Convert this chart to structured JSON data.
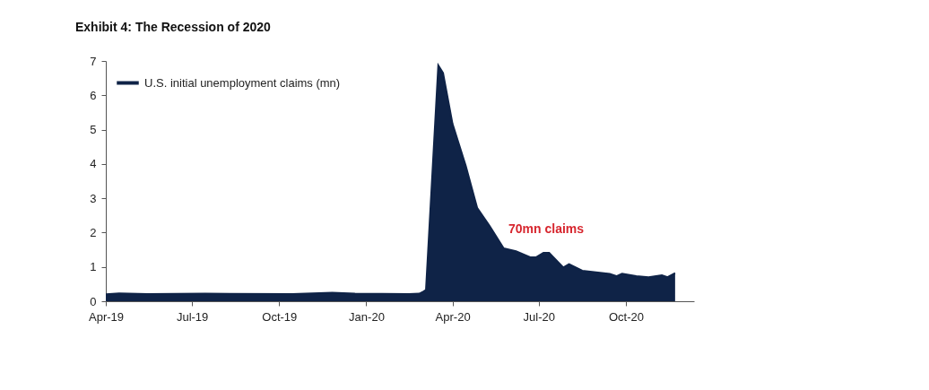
{
  "chart_data": {
    "type": "area",
    "title": "Exhibit 4: The Recession of 2020",
    "x": [
      "2019-04-01",
      "2019-04-15",
      "2019-05-15",
      "2019-07-15",
      "2019-10-15",
      "2019-11-26",
      "2019-12-20",
      "2020-02-15",
      "2020-02-26",
      "2020-03-01",
      "2020-03-04",
      "2020-03-17",
      "2020-03-22",
      "2020-04-01",
      "2020-04-15",
      "2020-04-27",
      "2020-05-10",
      "2020-05-25",
      "2020-06-07",
      "2020-06-22",
      "2020-06-28",
      "2020-07-06",
      "2020-07-12",
      "2020-07-27",
      "2020-08-02",
      "2020-08-16",
      "2020-09-14",
      "2020-09-21",
      "2020-09-27",
      "2020-10-12",
      "2020-10-25",
      "2020-11-08",
      "2020-11-14",
      "2020-11-22"
    ],
    "series": [
      {
        "name": "U.S. initial unemployment claims (mn)",
        "color": "#0f2347",
        "values": [
          0.2,
          0.23,
          0.21,
          0.22,
          0.21,
          0.25,
          0.22,
          0.21,
          0.22,
          0.28,
          0.33,
          6.87,
          6.65,
          5.17,
          3.94,
          2.72,
          2.2,
          1.54,
          1.46,
          1.28,
          1.28,
          1.41,
          1.41,
          0.98,
          1.08,
          0.89,
          0.8,
          0.73,
          0.8,
          0.73,
          0.7,
          0.76,
          0.7,
          0.82
        ]
      }
    ],
    "xlim": [
      "2019-04-01",
      "2020-12-12"
    ],
    "xticks": [
      {
        "value": "2019-04-01",
        "label": "Apr-19"
      },
      {
        "value": "2019-07-01",
        "label": "Jul-19"
      },
      {
        "value": "2019-10-01",
        "label": "Oct-19"
      },
      {
        "value": "2020-01-01",
        "label": "Jan-20"
      },
      {
        "value": "2020-04-01",
        "label": "Apr-20"
      },
      {
        "value": "2020-07-01",
        "label": "Jul-20"
      },
      {
        "value": "2020-10-01",
        "label": "Oct-20"
      }
    ],
    "ylim": [
      0,
      7
    ],
    "yticks": [
      0,
      1,
      2,
      3,
      4,
      5,
      6,
      7
    ],
    "grid": false,
    "legend": "top left",
    "annotations": [
      "70mn claims"
    ]
  }
}
